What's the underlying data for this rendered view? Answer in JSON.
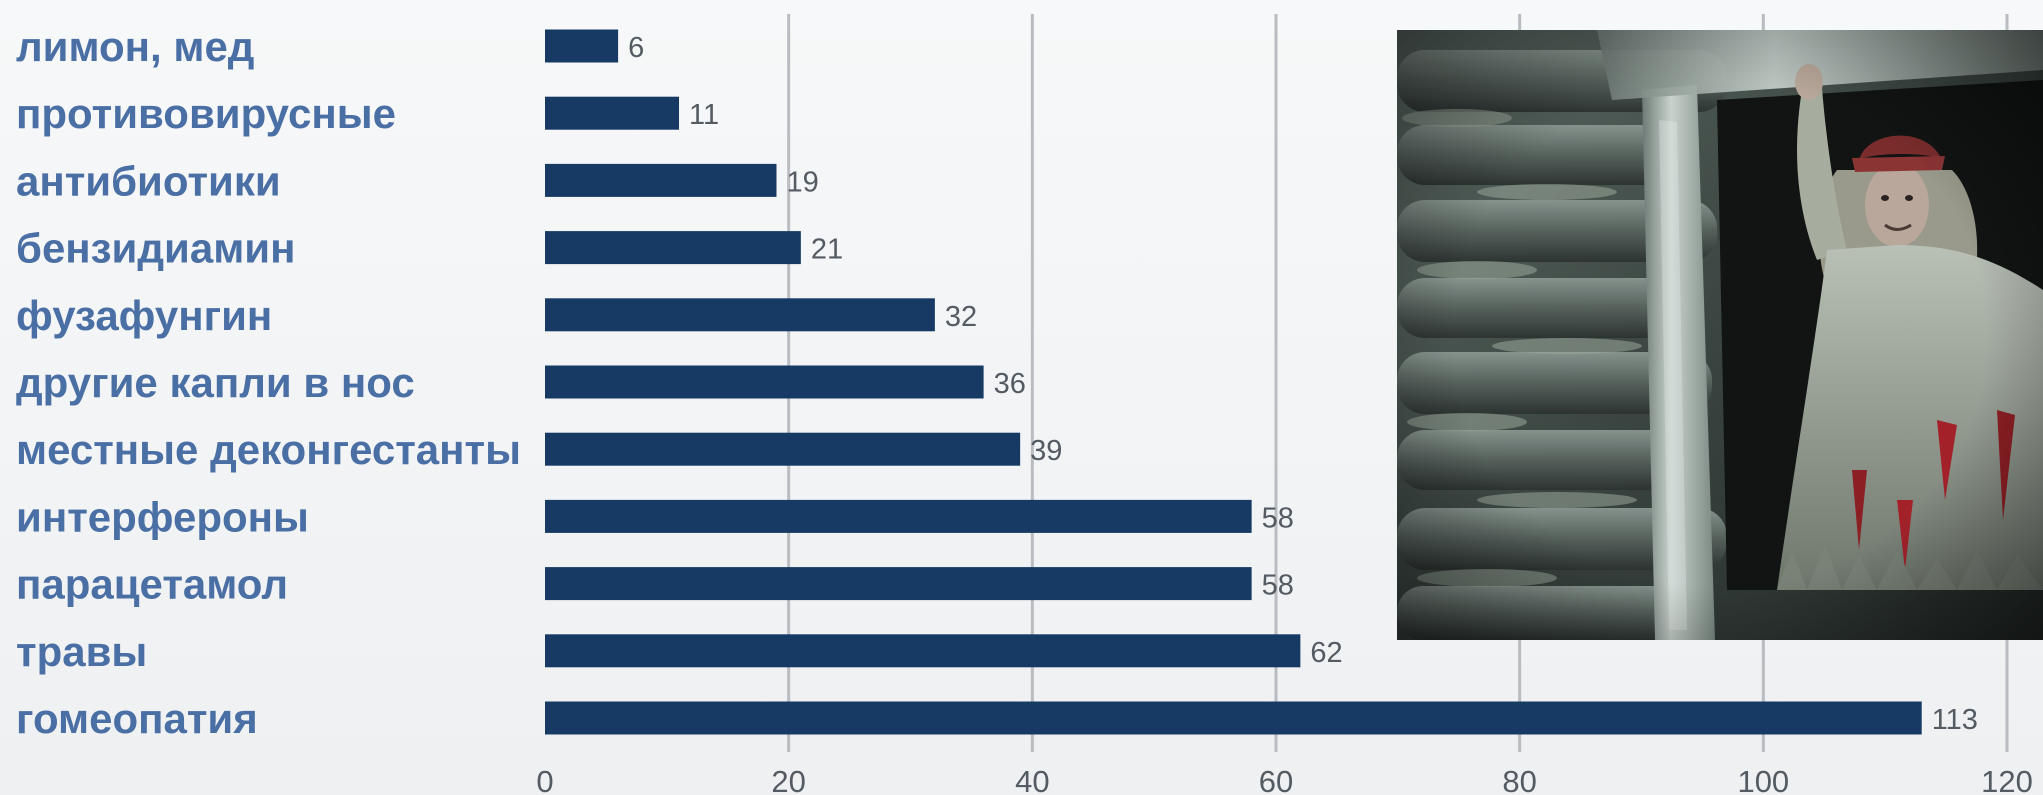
{
  "chart_data": {
    "type": "bar",
    "orientation": "horizontal",
    "categories": [
      "лимон, мед",
      "противовирусные",
      "антибиотики",
      "бензидиамин",
      "фузафунгин",
      "другие капли в нос",
      "местные деконгестанты",
      "интерфероны",
      "парацетамол",
      "травы",
      "гомеопатия"
    ],
    "values": [
      6,
      11,
      19,
      21,
      32,
      36,
      39,
      58,
      58,
      62,
      113
    ],
    "value_labels": [
      "6",
      "11",
      "19",
      "21",
      "32",
      "36",
      "39",
      "58",
      "58",
      "62",
      "113"
    ],
    "xlim": [
      0,
      120
    ],
    "xticks": [
      0,
      20,
      40,
      60,
      80,
      100,
      120
    ],
    "xtick_labels": [
      "0",
      "20",
      "40",
      "60",
      "80",
      "100",
      "120"
    ],
    "grid": "vertical",
    "colors": {
      "bar": "#173a64",
      "category_text": "#4a6fa5",
      "value_text": "#555b63",
      "grid": "#b9bcc0"
    }
  },
  "photo": {
    "icon": "witch-photo-icon"
  }
}
